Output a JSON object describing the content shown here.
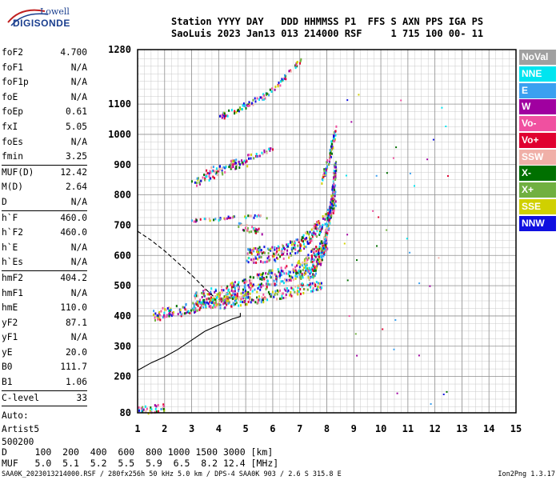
{
  "logo": {
    "line1": "Lowell",
    "line2": "DIGISONDE"
  },
  "header": {
    "row1": "Station YYYY DAY   DDD HHMMSS P1  FFS S AXN PPS IGA PS",
    "row2": "SaoLuis 2023 Jan13 013 214000 RSF     1 715 100 00- 11"
  },
  "params": [
    {
      "label": "foF2",
      "value": "4.700"
    },
    {
      "label": "foF1",
      "value": "N/A"
    },
    {
      "label": "foF1p",
      "value": "N/A"
    },
    {
      "label": "foE",
      "value": "N/A"
    },
    {
      "label": "foEp",
      "value": "0.61"
    },
    {
      "label": "fxI",
      "value": "5.05"
    },
    {
      "label": "foEs",
      "value": "N/A"
    },
    {
      "label": "fmin",
      "value": "3.25",
      "sep": true
    },
    {
      "label": "MUF(D)",
      "value": "12.42"
    },
    {
      "label": "M(D)",
      "value": "2.64"
    },
    {
      "label": "D",
      "value": "N/A",
      "sep": true
    },
    {
      "label": "h`F",
      "value": "460.0"
    },
    {
      "label": "h`F2",
      "value": "460.0"
    },
    {
      "label": "h`E",
      "value": "N/A"
    },
    {
      "label": "h`Es",
      "value": "N/A",
      "sep": true
    },
    {
      "label": "hmF2",
      "value": "404.2"
    },
    {
      "label": "hmF1",
      "value": "N/A"
    },
    {
      "label": "hmE",
      "value": "110.0"
    },
    {
      "label": "yF2",
      "value": "87.1"
    },
    {
      "label": "yF1",
      "value": "N/A"
    },
    {
      "label": "yE",
      "value": "20.0"
    },
    {
      "label": "B0",
      "value": "111.7"
    },
    {
      "label": "B1",
      "value": "1.06",
      "sep": true
    },
    {
      "label": "C-level",
      "value": "33",
      "sep": true
    }
  ],
  "auto_lines": [
    "Auto:",
    "Artist5",
    "500200"
  ],
  "legend": [
    {
      "label": "NoVal",
      "color": "#a0a0a0"
    },
    {
      "label": "NNE",
      "color": "#00e5f0"
    },
    {
      "label": "E",
      "color": "#3aa0f0"
    },
    {
      "label": "W",
      "color": "#a000a0"
    },
    {
      "label": "Vo-",
      "color": "#f050a0"
    },
    {
      "label": "Vo+",
      "color": "#e00030"
    },
    {
      "label": "SSW",
      "color": "#f0b0a8"
    },
    {
      "label": "X-",
      "color": "#007000"
    },
    {
      "label": "X+",
      "color": "#70b040"
    },
    {
      "label": "SSE",
      "color": "#d0d000"
    },
    {
      "label": "NNW",
      "color": "#1010e0"
    }
  ],
  "chart_data": {
    "type": "scatter",
    "xlim": [
      1,
      15
    ],
    "ylim": [
      80,
      1280
    ],
    "x_ticks": [
      1,
      2,
      3,
      4,
      5,
      6,
      7,
      8,
      9,
      10,
      11,
      12,
      13,
      14,
      15
    ],
    "y_ticks": [
      80,
      200,
      300,
      400,
      500,
      600,
      700,
      800,
      900,
      1000,
      1100,
      1280
    ],
    "grid": true,
    "traces": [
      {
        "name": "dashed",
        "x": [
          1.0,
          1.5,
          2.0,
          2.5,
          3.0,
          3.5,
          3.8
        ],
        "y": [
          680,
          650,
          615,
          575,
          535,
          490,
          465
        ]
      },
      {
        "name": "solid",
        "x": [
          1.0,
          1.5,
          2.0,
          2.5,
          3.0,
          3.5,
          4.0,
          4.5,
          4.8,
          4.8
        ],
        "y": [
          220,
          245,
          265,
          290,
          320,
          350,
          370,
          390,
          398,
          410
        ]
      }
    ],
    "echo_bands": [
      {
        "x": [
          1.5,
          2.5,
          3.5,
          4.5,
          5.0
        ],
        "y": [
          405,
          420,
          440,
          468,
          480
        ],
        "w": 14
      },
      {
        "x": [
          4.0,
          5.0,
          6.0,
          7.0,
          7.8
        ],
        "y": [
          440,
          455,
          470,
          490,
          505
        ],
        "w": 12
      },
      {
        "x": [
          3.0,
          4.0,
          5.0,
          6.0,
          7.0,
          7.5,
          8.0
        ],
        "y": [
          455,
          470,
          500,
          530,
          560,
          600,
          650
        ],
        "w": 22
      },
      {
        "x": [
          5.0,
          6.0,
          6.5,
          7.0,
          7.5,
          8.0,
          8.3
        ],
        "y": [
          600,
          610,
          620,
          640,
          680,
          720,
          800
        ],
        "w": 20
      },
      {
        "x": [
          7.0,
          7.5,
          7.8,
          8.0,
          8.2,
          8.3
        ],
        "y": [
          520,
          550,
          600,
          700,
          800,
          900
        ],
        "w": 16
      },
      {
        "x": [
          7.8,
          8.0,
          8.2,
          8.3
        ],
        "y": [
          850,
          900,
          980,
          1020
        ],
        "w": 10
      },
      {
        "x": [
          3.0,
          4.0,
          5.0,
          5.8
        ],
        "y": [
          720,
          725,
          730,
          732
        ],
        "w": 4
      },
      {
        "x": [
          3.0,
          3.5,
          4.0,
          4.5,
          5.0
        ],
        "y": [
          840,
          860,
          880,
          900,
          910
        ],
        "w": 10
      },
      {
        "x": [
          3.5,
          4.5,
          5.5,
          6.0
        ],
        "y": [
          880,
          910,
          940,
          955
        ],
        "w": 6
      },
      {
        "x": [
          4.0,
          4.5,
          5.0,
          5.5,
          6.0
        ],
        "y": [
          1060,
          1080,
          1100,
          1120,
          1150
        ],
        "w": 8
      },
      {
        "x": [
          6.0,
          6.5,
          7.0
        ],
        "y": [
          1150,
          1200,
          1250
        ],
        "w": 6
      },
      {
        "x": [
          4.7,
          5.2,
          5.7
        ],
        "y": [
          700,
          690,
          680
        ],
        "w": 8
      },
      {
        "x": [
          1.0,
          1.5,
          2.0
        ],
        "y": [
          90,
          95,
          100
        ],
        "w": 10
      }
    ]
  },
  "bottom_table": {
    "row1": "D     100  200  400  600  800 1000 1500 3000 [km]",
    "row2": "MUF   5.0  5.1  5.2  5.5  5.9  6.5  8.2 12.4 [MHz]"
  },
  "footer": {
    "left": "SAA0K_2023013214000.RSF / 280fx256h 50 kHz 5.0 km / DPS-4 SAA0K 903 / 2.6 S 315.8 E",
    "right": "Ion2Png 1.3.17"
  }
}
